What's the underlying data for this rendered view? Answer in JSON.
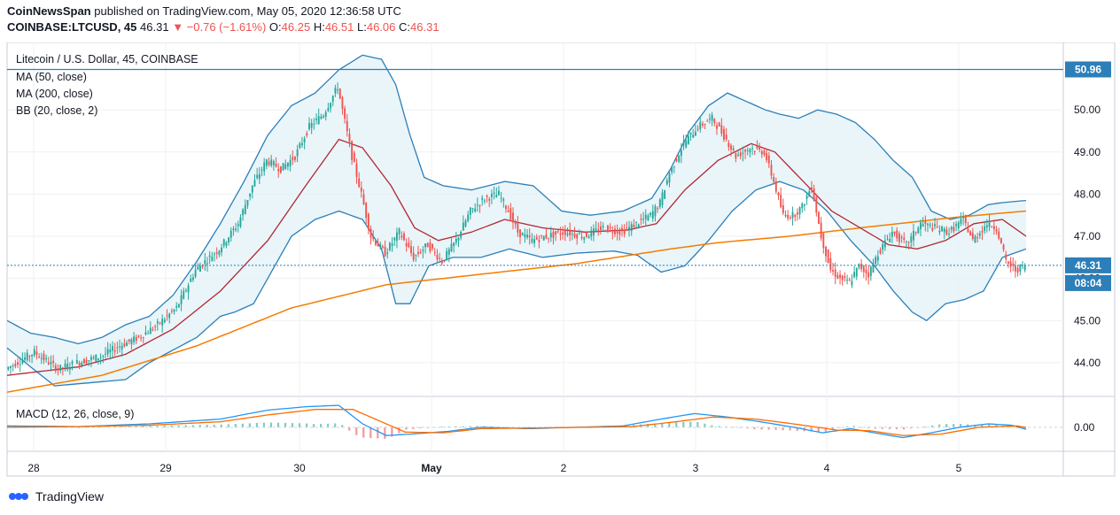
{
  "header": {
    "publisher": "CoinNewsSpan",
    "published_text": "published on TradingView.com, May 05, 2020 12:36:58 UTC",
    "symbol": "COINBASE:LTCUSD, 45",
    "last": "46.31",
    "change": "▼ −0.76 (−1.61%)",
    "o_label": "O:",
    "o": "46.25",
    "h_label": "H:",
    "h": "46.51",
    "l_label": "L:",
    "l": "46.06",
    "c_label": "C:",
    "c": "46.31"
  },
  "footer": {
    "brand": "TradingView",
    "logo_icon": "tradingview-logo-icon"
  },
  "colors": {
    "up": "#26a69a",
    "down": "#ef5350",
    "ma50": "#b22833",
    "ma200": "#f57c00",
    "bb": "#2c7fb8",
    "bb_fill": "#e3f2f7",
    "macd": "#2196f3",
    "signal": "#ff6d00",
    "hline": "#2c7fb8",
    "price_tag": "#2c7fb8"
  },
  "chart_data": [
    {
      "type": "candlestick",
      "title": "Litecoin / U.S. Dollar, 45, COINBASE",
      "legend": [
        "MA (50, close)",
        "MA (200, close)",
        "BB (20, close, 2)"
      ],
      "y_ticks": [
        "44.00",
        "45.00",
        "46.00",
        "47.00",
        "48.00",
        "49.00",
        "50.00"
      ],
      "ylim": [
        43.2,
        51.6
      ],
      "x_ticks": [
        "28",
        "29",
        "30",
        "May",
        "2",
        "3",
        "4",
        "5"
      ],
      "grid": true,
      "horizontal_line": {
        "label": "50.96",
        "value": 50.96
      },
      "last_price": {
        "label": "46.31",
        "value": 46.31
      },
      "countdown": "08:04",
      "close_path": [
        [
          0,
          43.85
        ],
        [
          12,
          44.25
        ],
        [
          22,
          43.85
        ],
        [
          30,
          44.0
        ],
        [
          40,
          44.15
        ],
        [
          48,
          44.4
        ],
        [
          56,
          44.6
        ],
        [
          64,
          44.9
        ],
        [
          72,
          45.3
        ],
        [
          80,
          46.2
        ],
        [
          90,
          46.7
        ],
        [
          98,
          47.3
        ],
        [
          104,
          48.2
        ],
        [
          110,
          48.8
        ],
        [
          116,
          48.6
        ],
        [
          122,
          48.9
        ],
        [
          128,
          49.6
        ],
        [
          134,
          49.9
        ],
        [
          140,
          50.55
        ],
        [
          146,
          48.9
        ],
        [
          150,
          48.0
        ],
        [
          154,
          47.0
        ],
        [
          160,
          46.6
        ],
        [
          166,
          47.1
        ],
        [
          172,
          46.5
        ],
        [
          178,
          46.8
        ],
        [
          184,
          46.4
        ],
        [
          190,
          46.9
        ],
        [
          196,
          47.6
        ],
        [
          202,
          47.9
        ],
        [
          208,
          48.0
        ],
        [
          212,
          47.6
        ],
        [
          216,
          47.1
        ],
        [
          222,
          46.9
        ],
        [
          228,
          47.0
        ],
        [
          236,
          47.1
        ],
        [
          244,
          47.0
        ],
        [
          252,
          47.2
        ],
        [
          260,
          47.1
        ],
        [
          266,
          47.3
        ],
        [
          272,
          47.5
        ],
        [
          276,
          47.8
        ],
        [
          280,
          48.5
        ],
        [
          286,
          49.2
        ],
        [
          292,
          49.6
        ],
        [
          298,
          49.8
        ],
        [
          304,
          49.3
        ],
        [
          308,
          48.9
        ],
        [
          314,
          49.1
        ],
        [
          320,
          49.0
        ],
        [
          324,
          48.3
        ],
        [
          328,
          47.5
        ],
        [
          332,
          47.5
        ],
        [
          336,
          47.7
        ],
        [
          340,
          48.2
        ],
        [
          344,
          47.0
        ],
        [
          348,
          46.2
        ],
        [
          352,
          46.0
        ],
        [
          356,
          45.9
        ],
        [
          360,
          46.3
        ],
        [
          364,
          46.1
        ],
        [
          368,
          46.6
        ],
        [
          374,
          47.1
        ],
        [
          380,
          46.8
        ],
        [
          386,
          47.3
        ],
        [
          392,
          47.2
        ],
        [
          398,
          47.1
        ],
        [
          404,
          47.4
        ],
        [
          408,
          46.9
        ],
        [
          414,
          47.3
        ],
        [
          418,
          47.2
        ],
        [
          422,
          46.4
        ],
        [
          426,
          46.2
        ],
        [
          430,
          46.31
        ]
      ],
      "ma50": [
        [
          0,
          43.7
        ],
        [
          30,
          43.9
        ],
        [
          50,
          44.2
        ],
        [
          70,
          44.8
        ],
        [
          90,
          45.7
        ],
        [
          110,
          46.9
        ],
        [
          126,
          48.2
        ],
        [
          140,
          49.3
        ],
        [
          150,
          49.1
        ],
        [
          162,
          48.2
        ],
        [
          172,
          47.2
        ],
        [
          182,
          46.9
        ],
        [
          196,
          47.1
        ],
        [
          210,
          47.4
        ],
        [
          226,
          47.2
        ],
        [
          244,
          47.1
        ],
        [
          262,
          47.15
        ],
        [
          274,
          47.3
        ],
        [
          286,
          48.1
        ],
        [
          300,
          48.8
        ],
        [
          314,
          49.2
        ],
        [
          324,
          49.0
        ],
        [
          336,
          48.3
        ],
        [
          348,
          47.6
        ],
        [
          360,
          47.2
        ],
        [
          372,
          46.8
        ],
        [
          384,
          46.7
        ],
        [
          396,
          46.9
        ],
        [
          408,
          47.3
        ],
        [
          420,
          47.4
        ],
        [
          430,
          47.0
        ]
      ],
      "ma200": [
        [
          0,
          43.3
        ],
        [
          40,
          43.7
        ],
        [
          80,
          44.4
        ],
        [
          120,
          45.3
        ],
        [
          160,
          45.85
        ],
        [
          200,
          46.1
        ],
        [
          240,
          46.35
        ],
        [
          280,
          46.7
        ],
        [
          300,
          46.85
        ],
        [
          330,
          47.0
        ],
        [
          360,
          47.2
        ],
        [
          400,
          47.45
        ],
        [
          430,
          47.6
        ]
      ],
      "bb_upper": [
        [
          0,
          45.0
        ],
        [
          10,
          44.7
        ],
        [
          20,
          44.6
        ],
        [
          30,
          44.45
        ],
        [
          40,
          44.6
        ],
        [
          50,
          44.9
        ],
        [
          60,
          45.1
        ],
        [
          70,
          45.6
        ],
        [
          80,
          46.4
        ],
        [
          90,
          47.3
        ],
        [
          100,
          48.3
        ],
        [
          110,
          49.4
        ],
        [
          120,
          50.1
        ],
        [
          130,
          50.4
        ],
        [
          140,
          50.95
        ],
        [
          150,
          51.3
        ],
        [
          158,
          51.2
        ],
        [
          164,
          50.6
        ],
        [
          170,
          49.4
        ],
        [
          176,
          48.4
        ],
        [
          184,
          48.2
        ],
        [
          196,
          48.1
        ],
        [
          210,
          48.3
        ],
        [
          222,
          48.2
        ],
        [
          234,
          47.6
        ],
        [
          246,
          47.5
        ],
        [
          260,
          47.6
        ],
        [
          272,
          47.9
        ],
        [
          280,
          48.6
        ],
        [
          288,
          49.5
        ],
        [
          296,
          50.1
        ],
        [
          304,
          50.4
        ],
        [
          312,
          50.2
        ],
        [
          320,
          50.0
        ],
        [
          326,
          49.9
        ],
        [
          334,
          49.8
        ],
        [
          342,
          50.0
        ],
        [
          350,
          49.9
        ],
        [
          358,
          49.7
        ],
        [
          366,
          49.3
        ],
        [
          374,
          48.8
        ],
        [
          382,
          48.4
        ],
        [
          390,
          47.6
        ],
        [
          398,
          47.4
        ],
        [
          406,
          47.5
        ],
        [
          414,
          47.75
        ],
        [
          420,
          47.8
        ],
        [
          430,
          47.85
        ]
      ],
      "bb_lower": [
        [
          0,
          44.35
        ],
        [
          20,
          43.45
        ],
        [
          30,
          43.5
        ],
        [
          40,
          43.55
        ],
        [
          50,
          43.6
        ],
        [
          60,
          44.0
        ],
        [
          70,
          44.3
        ],
        [
          80,
          44.6
        ],
        [
          90,
          45.1
        ],
        [
          96,
          45.2
        ],
        [
          104,
          45.4
        ],
        [
          112,
          46.2
        ],
        [
          120,
          47.0
        ],
        [
          130,
          47.4
        ],
        [
          140,
          47.6
        ],
        [
          150,
          47.4
        ],
        [
          158,
          46.7
        ],
        [
          164,
          45.4
        ],
        [
          170,
          45.4
        ],
        [
          178,
          46.3
        ],
        [
          188,
          46.5
        ],
        [
          200,
          46.5
        ],
        [
          212,
          46.7
        ],
        [
          226,
          46.5
        ],
        [
          240,
          46.6
        ],
        [
          256,
          46.65
        ],
        [
          266,
          46.55
        ],
        [
          276,
          46.15
        ],
        [
          286,
          46.3
        ],
        [
          296,
          46.9
        ],
        [
          306,
          47.6
        ],
        [
          316,
          48.1
        ],
        [
          326,
          48.3
        ],
        [
          336,
          48.1
        ],
        [
          346,
          47.6
        ],
        [
          356,
          46.9
        ],
        [
          366,
          46.3
        ],
        [
          374,
          45.7
        ],
        [
          382,
          45.2
        ],
        [
          388,
          45.0
        ],
        [
          396,
          45.4
        ],
        [
          404,
          45.5
        ],
        [
          412,
          45.7
        ],
        [
          420,
          46.5
        ],
        [
          430,
          46.7
        ]
      ]
    },
    {
      "type": "macd",
      "title": "MACD (12, 26, close, 9)",
      "y_ticks": [
        "0.00"
      ],
      "ylim": [
        -0.35,
        0.45
      ],
      "macd": [
        [
          0,
          0.02
        ],
        [
          30,
          0.01
        ],
        [
          60,
          0.05
        ],
        [
          90,
          0.12
        ],
        [
          110,
          0.25
        ],
        [
          126,
          0.3
        ],
        [
          140,
          0.32
        ],
        [
          150,
          0.05
        ],
        [
          160,
          -0.12
        ],
        [
          170,
          -0.1
        ],
        [
          186,
          -0.06
        ],
        [
          200,
          0.0
        ],
        [
          220,
          -0.02
        ],
        [
          240,
          0.0
        ],
        [
          260,
          0.02
        ],
        [
          276,
          0.12
        ],
        [
          290,
          0.2
        ],
        [
          304,
          0.15
        ],
        [
          318,
          0.08
        ],
        [
          332,
          0.0
        ],
        [
          344,
          -0.08
        ],
        [
          356,
          -0.02
        ],
        [
          366,
          -0.08
        ],
        [
          378,
          -0.15
        ],
        [
          390,
          -0.08
        ],
        [
          402,
          0.0
        ],
        [
          414,
          0.05
        ],
        [
          424,
          0.03
        ],
        [
          430,
          -0.03
        ]
      ],
      "signal": [
        [
          0,
          0.0
        ],
        [
          30,
          0.01
        ],
        [
          60,
          0.03
        ],
        [
          90,
          0.08
        ],
        [
          110,
          0.18
        ],
        [
          130,
          0.26
        ],
        [
          146,
          0.26
        ],
        [
          158,
          0.08
        ],
        [
          168,
          -0.07
        ],
        [
          184,
          -0.08
        ],
        [
          200,
          -0.02
        ],
        [
          222,
          -0.01
        ],
        [
          244,
          0.0
        ],
        [
          264,
          0.01
        ],
        [
          282,
          0.08
        ],
        [
          298,
          0.15
        ],
        [
          316,
          0.12
        ],
        [
          334,
          0.04
        ],
        [
          350,
          -0.04
        ],
        [
          364,
          -0.05
        ],
        [
          378,
          -0.12
        ],
        [
          394,
          -0.1
        ],
        [
          410,
          0.0
        ],
        [
          426,
          0.02
        ],
        [
          430,
          0.0
        ]
      ]
    }
  ]
}
